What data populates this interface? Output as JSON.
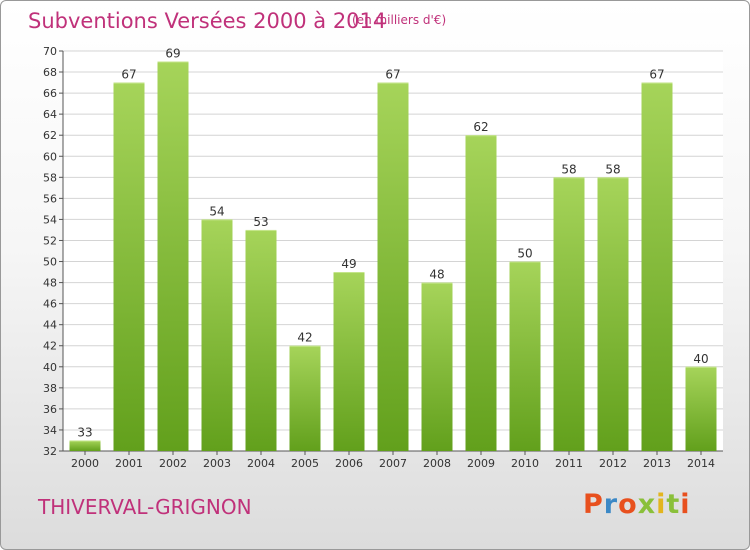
{
  "header": {
    "title": "Subventions Versées 2000 à 2014",
    "subtitle": "(en milliers d'€)"
  },
  "footer": {
    "commune": "THIVERVAL-GRIGNON",
    "brand": "Proxiti",
    "brand_colors": [
      "#e8501e",
      "#3b88c6",
      "#e8501e",
      "#8ac03a",
      "#e3b51e",
      "#8ac03a",
      "#e8501e"
    ]
  },
  "colors": {
    "title": "#c0317a",
    "bar_light": "#a6d45a",
    "bar_dark": "#62a01c",
    "grid": "#d4d4d4"
  },
  "chart_data": {
    "type": "bar",
    "title": "Subventions Versées 2000 à 2014",
    "subtitle": "(en milliers d'€)",
    "categories": [
      "2000",
      "2001",
      "2002",
      "2003",
      "2004",
      "2005",
      "2006",
      "2007",
      "2008",
      "2009",
      "2010",
      "2011",
      "2012",
      "2013",
      "2014"
    ],
    "values": [
      33,
      67,
      69,
      54,
      53,
      42,
      49,
      67,
      48,
      62,
      50,
      58,
      58,
      67,
      40
    ],
    "ylim": [
      32,
      70
    ],
    "yticks": [
      32,
      34,
      36,
      38,
      40,
      42,
      44,
      46,
      48,
      50,
      52,
      54,
      56,
      58,
      60,
      62,
      64,
      66,
      68,
      70
    ],
    "grid": true,
    "legend": "none"
  }
}
